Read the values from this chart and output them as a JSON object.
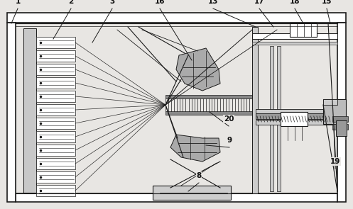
{
  "bg_color": "#e8e6e3",
  "line_color": "#1a1a1a",
  "label_color": "#111111",
  "fig_width": 4.97,
  "fig_height": 2.95,
  "dpi": 100
}
